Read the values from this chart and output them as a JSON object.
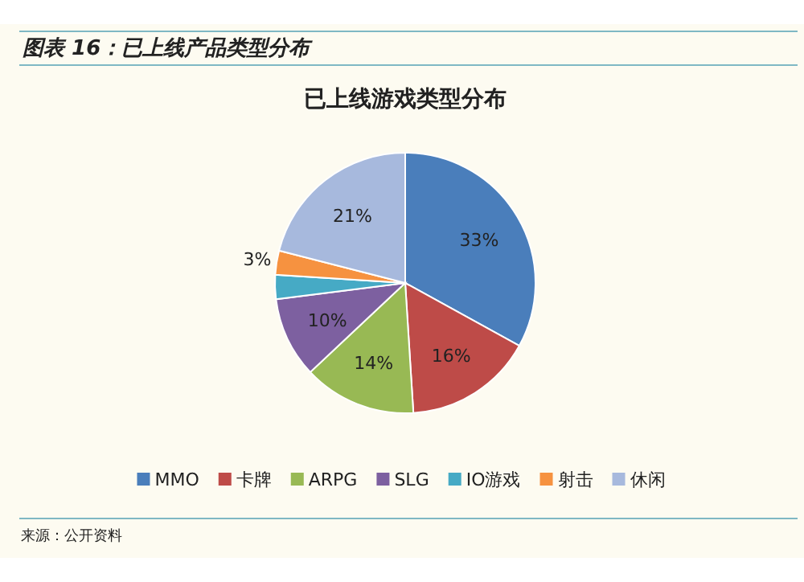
{
  "chart_data": {
    "type": "pie",
    "title": "图表 16：已上线产品类型分布",
    "subtitle": "已上线游戏类型分布",
    "categories": [
      "MMO",
      "卡牌",
      "ARPG",
      "SLG",
      "IO游戏",
      "射击",
      "休闲"
    ],
    "values": [
      33,
      16,
      14,
      10,
      3,
      3,
      21
    ],
    "colors": [
      "#4a7ebb",
      "#be4b48",
      "#98b954",
      "#7d60a0",
      "#46aac5",
      "#f69240",
      "#a7b9dd"
    ],
    "value_labels": [
      "33%",
      "16%",
      "14%",
      "10%",
      null,
      "3%",
      "21%"
    ],
    "legend": "bottom",
    "annotations": [
      "来源：公开资料"
    ]
  }
}
